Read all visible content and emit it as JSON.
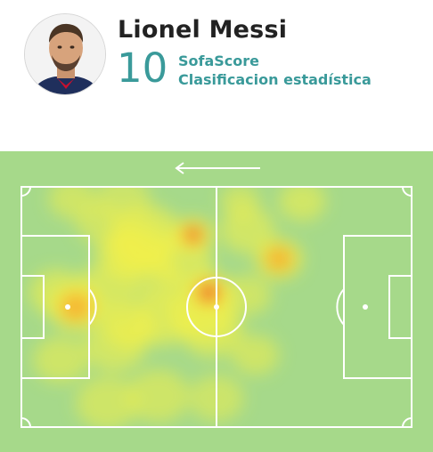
{
  "player": {
    "name": "Lionel Messi",
    "rating": "10",
    "source": "SofaScore",
    "subtitle": "Clasificacion estadística"
  },
  "pitch": {
    "attack_direction": "left",
    "colors": {
      "grass": "#a6d98a",
      "lines": "#ffffff",
      "heat_low": "#f2f04a",
      "heat_mid": "#f7b12e",
      "heat_high": "#e8302c"
    }
  },
  "heatmap": {
    "spots": [
      {
        "x": 44,
        "y": 20,
        "r": 5,
        "intensity": 0.95
      },
      {
        "x": 32,
        "y": 20,
        "r": 9,
        "intensity": 0.5
      },
      {
        "x": 30,
        "y": 26,
        "r": 8,
        "intensity": 0.55
      },
      {
        "x": 26,
        "y": 28,
        "r": 7,
        "intensity": 0.5
      },
      {
        "x": 41,
        "y": 31,
        "r": 8,
        "intensity": 0.45
      },
      {
        "x": 48,
        "y": 44,
        "r": 6,
        "intensity": 0.95
      },
      {
        "x": 46,
        "y": 52,
        "r": 9,
        "intensity": 0.55
      },
      {
        "x": 49,
        "y": 60,
        "r": 8,
        "intensity": 0.4
      },
      {
        "x": 14,
        "y": 50,
        "r": 7,
        "intensity": 0.8
      },
      {
        "x": 9,
        "y": 44,
        "r": 7,
        "intensity": 0.4
      },
      {
        "x": 21,
        "y": 44,
        "r": 8,
        "intensity": 0.45
      },
      {
        "x": 28,
        "y": 58,
        "r": 7,
        "intensity": 0.5
      },
      {
        "x": 36,
        "y": 55,
        "r": 8,
        "intensity": 0.45
      },
      {
        "x": 24,
        "y": 66,
        "r": 8,
        "intensity": 0.35
      },
      {
        "x": 66,
        "y": 30,
        "r": 6,
        "intensity": 0.7
      },
      {
        "x": 58,
        "y": 18,
        "r": 7,
        "intensity": 0.35
      },
      {
        "x": 72,
        "y": 6,
        "r": 6,
        "intensity": 0.35
      },
      {
        "x": 56,
        "y": 6,
        "r": 5,
        "intensity": 0.3
      },
      {
        "x": 13,
        "y": 5,
        "r": 6,
        "intensity": 0.3
      },
      {
        "x": 26,
        "y": 5,
        "r": 7,
        "intensity": 0.25
      },
      {
        "x": 22,
        "y": 90,
        "r": 8,
        "intensity": 0.3
      },
      {
        "x": 35,
        "y": 87,
        "r": 8,
        "intensity": 0.3
      },
      {
        "x": 50,
        "y": 88,
        "r": 7,
        "intensity": 0.25
      },
      {
        "x": 60,
        "y": 70,
        "r": 6,
        "intensity": 0.3
      },
      {
        "x": 10,
        "y": 72,
        "r": 7,
        "intensity": 0.3
      },
      {
        "x": 58,
        "y": 45,
        "r": 6,
        "intensity": 0.3
      },
      {
        "x": 20,
        "y": 15,
        "r": 6,
        "intensity": 0.3
      },
      {
        "x": 34,
        "y": 38,
        "r": 7,
        "intensity": 0.35
      }
    ]
  }
}
